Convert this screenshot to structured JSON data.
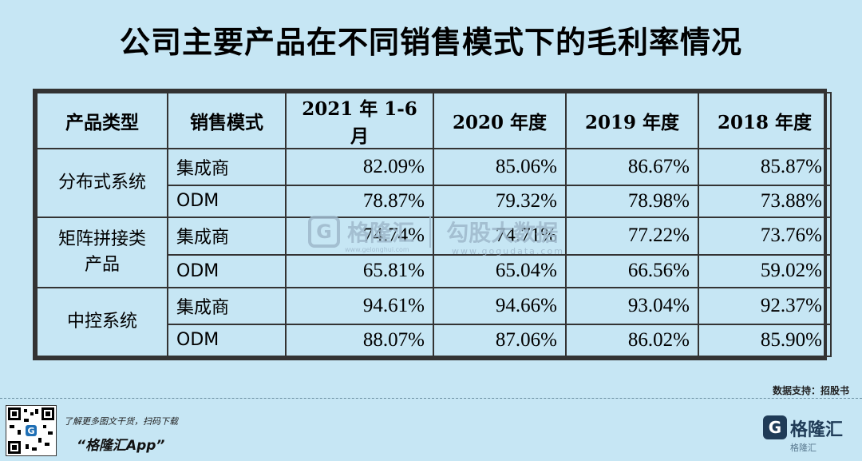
{
  "title": "公司主要产品在不同销售模式下的毛利率情况",
  "table": {
    "headers": [
      "产品类型",
      "销售模式",
      "2021 年 1-6 月",
      "2020 年度",
      "2019 年度",
      "2018 年度"
    ],
    "groups": [
      {
        "category": "分布式系统",
        "rows": [
          {
            "mode": "集成商",
            "values": [
              "82.09%",
              "85.06%",
              "86.67%",
              "85.87%"
            ]
          },
          {
            "mode": "ODM",
            "values": [
              "78.87%",
              "79.32%",
              "78.98%",
              "73.88%"
            ]
          }
        ]
      },
      {
        "category_line1": "矩阵拼接类",
        "category_line2": "产品",
        "rows": [
          {
            "mode": "集成商",
            "values": [
              "74.74%",
              "74.71%",
              "77.22%",
              "73.76%"
            ]
          },
          {
            "mode": "ODM",
            "values": [
              "65.81%",
              "65.04%",
              "66.56%",
              "59.02%"
            ]
          }
        ]
      },
      {
        "category": "中控系统",
        "rows": [
          {
            "mode": "集成商",
            "values": [
              "94.61%",
              "94.66%",
              "93.04%",
              "92.37%"
            ]
          },
          {
            "mode": "ODM",
            "values": [
              "88.07%",
              "87.06%",
              "86.02%",
              "85.90%"
            ]
          }
        ]
      }
    ]
  },
  "watermark": {
    "brand": "格隆汇",
    "brand_url": "www.gelonghui.com",
    "partner": "勾股大数据",
    "partner_url": "www.gogudata.com"
  },
  "source_note": "数据支持：招股书",
  "footer": {
    "promo_line1": "了解更多图文干货，扫码下载",
    "promo_line2": "“格隆汇App”",
    "brand_logo": "G",
    "brand_name": "格隆汇",
    "brand_sub": "格隆汇"
  },
  "colors": {
    "background": "#c6e6f4",
    "border": "#333333",
    "brand": "#1f3b57"
  }
}
